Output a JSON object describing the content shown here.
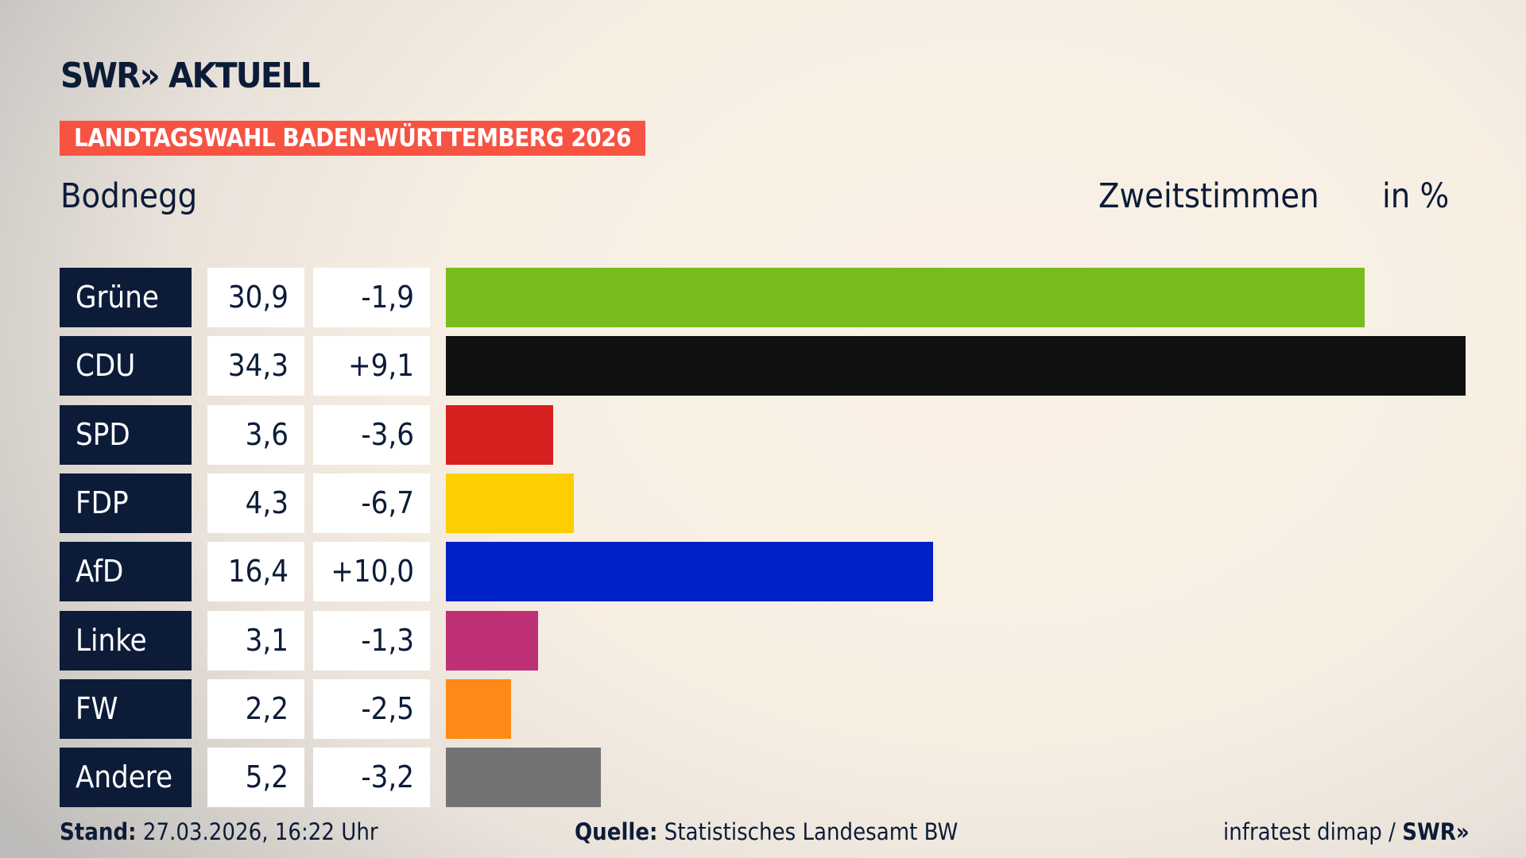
{
  "header": {
    "logo": "SWR» AKTUELL",
    "banner": "LANDTAGSWAHL BADEN-WÜRTTEMBERG 2026",
    "region": "Bodnegg",
    "metric": "Zweitstimmen",
    "unit": "in %"
  },
  "chart_data": {
    "type": "bar",
    "orientation": "horizontal",
    "categories": [
      "Grüne",
      "CDU",
      "SPD",
      "FDP",
      "AfD",
      "Linke",
      "FW",
      "Andere"
    ],
    "values": [
      30.9,
      34.3,
      3.6,
      4.3,
      16.4,
      3.1,
      2.2,
      5.2
    ],
    "value_labels": [
      "30,9",
      "34,3",
      "3,6",
      "4,3",
      "16,4",
      "3,1",
      "2,2",
      "5,2"
    ],
    "change_labels": [
      "-1,9",
      "+9,1",
      "-3,6",
      "-6,7",
      "+10,0",
      "-1,3",
      "-2,5",
      "-3,2"
    ],
    "colors": [
      "#78bc1e",
      "#111111",
      "#d6201f",
      "#fdcf00",
      "#0021c8",
      "#be3075",
      "#fd8a16",
      "#727375"
    ],
    "xlim": [
      0,
      34.3
    ]
  },
  "footer": {
    "stand_label": "Stand:",
    "stand_value": "27.03.2026, 16:22 Uhr",
    "source_label": "Quelle:",
    "source_value": "Statistisches Landesamt BW",
    "credit": "infratest dimap / ",
    "credit_logo": "SWR»"
  }
}
